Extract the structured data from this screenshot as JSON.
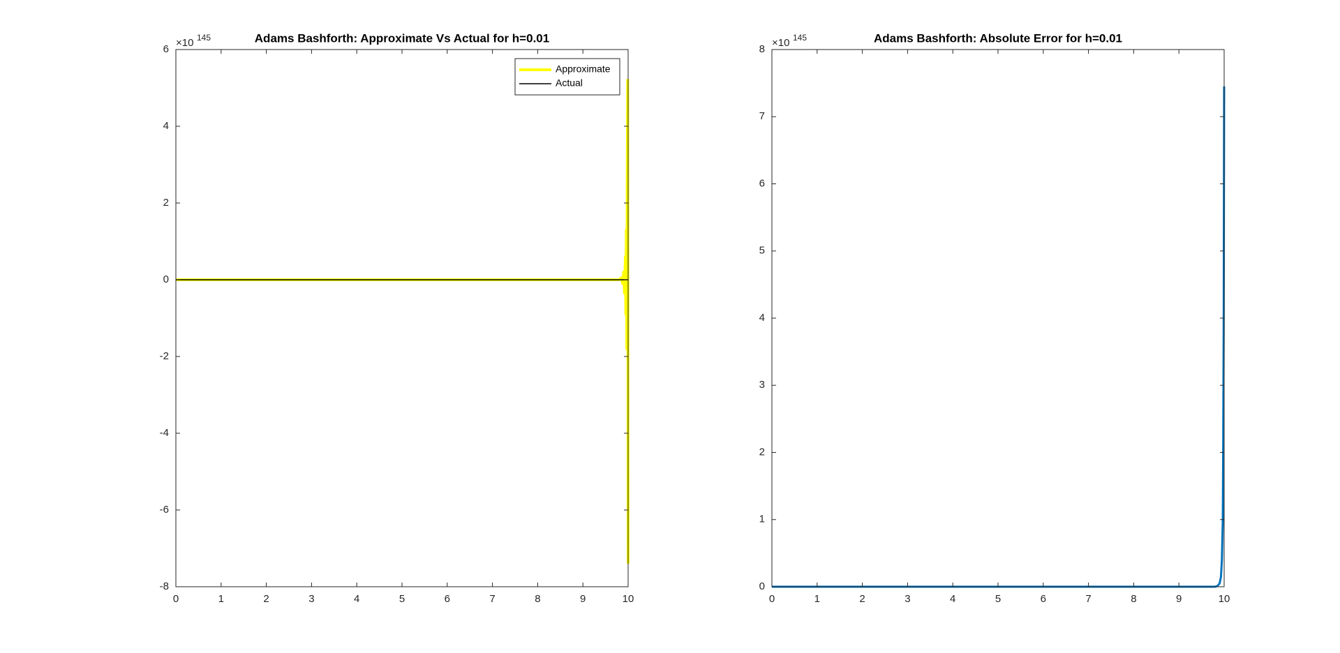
{
  "chart_data": [
    {
      "type": "line",
      "title": "Adams Bashforth: Approximate Vs Actual for h=0.01",
      "y_multiplier": "×10",
      "y_exponent": "145",
      "series": [
        {
          "name": "Approximate",
          "color": "#ffff00",
          "width": 4,
          "x": [
            0,
            9.8,
            9.85,
            9.88,
            9.9,
            9.92,
            9.94,
            9.95,
            9.96,
            9.97,
            9.98,
            9.99,
            10
          ],
          "values": [
            0,
            0,
            0.05,
            -0.1,
            0.2,
            -0.35,
            0.6,
            -0.9,
            1.3,
            -1.8,
            2.5,
            5.2,
            -7.4
          ]
        },
        {
          "name": "Actual",
          "color": "#000000",
          "width": 1.5,
          "x": [
            0,
            10
          ],
          "values": [
            0,
            0
          ]
        }
      ],
      "xlim": [
        0,
        10
      ],
      "ylim": [
        -8,
        6
      ],
      "xticks": [
        0,
        1,
        2,
        3,
        4,
        5,
        6,
        7,
        8,
        9,
        10
      ],
      "yticks": [
        -8,
        -6,
        -4,
        -2,
        0,
        2,
        4,
        6
      ],
      "legend": "upper right"
    },
    {
      "type": "line",
      "title": "Adams Bashforth: Absolute Error for h=0.01",
      "y_multiplier": "×10",
      "y_exponent": "145",
      "series": [
        {
          "color": "#0072bd",
          "width": 3,
          "x": [
            0,
            9.8,
            9.85,
            9.9,
            9.93,
            9.95,
            9.97,
            9.98,
            9.99,
            10
          ],
          "values": [
            0,
            0,
            0.01,
            0.05,
            0.15,
            0.4,
            1,
            2.2,
            4,
            7.45
          ]
        }
      ],
      "xlim": [
        0,
        10
      ],
      "ylim": [
        0,
        8
      ],
      "xticks": [
        0,
        1,
        2,
        3,
        4,
        5,
        6,
        7,
        8,
        9,
        10
      ],
      "yticks": [
        0,
        1,
        2,
        3,
        4,
        5,
        6,
        7,
        8
      ]
    }
  ]
}
